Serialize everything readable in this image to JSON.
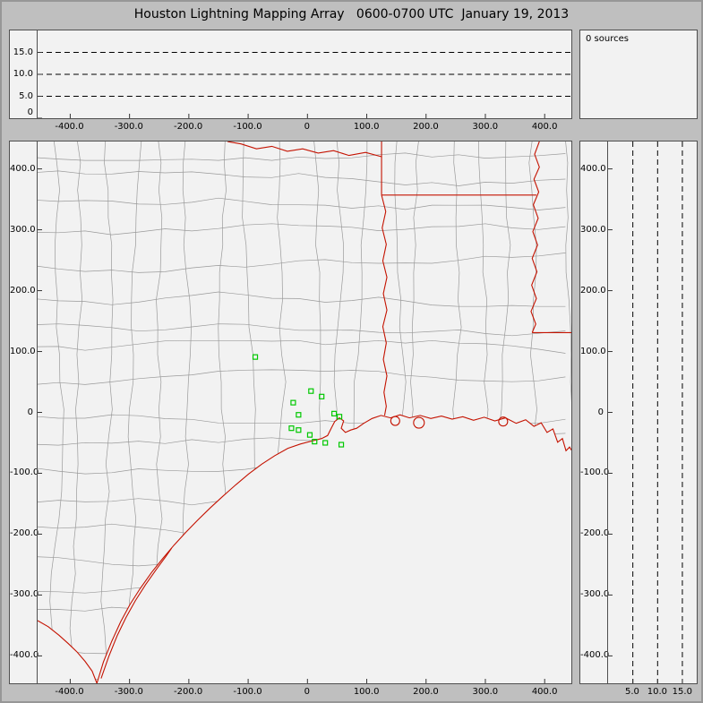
{
  "header": {
    "title": "Houston Lightning Mapping Array   0600-0700 UTC  January 19, 2013"
  },
  "chart_data": {
    "type": "scatter",
    "title": "Houston Lightning Mapping Array",
    "time_range": "0600-0700 UTC",
    "date": "January 19, 2013",
    "source_count_label": "0 sources",
    "lightning_sources": [],
    "stations_km": [
      [
        -88,
        91
      ],
      [
        6,
        35
      ],
      [
        24,
        26
      ],
      [
        -24,
        16
      ],
      [
        -15,
        -4
      ],
      [
        -27,
        -26
      ],
      [
        -15,
        -29
      ],
      [
        4,
        -37
      ],
      [
        45,
        -2
      ],
      [
        54,
        -7
      ],
      [
        12,
        -48
      ],
      [
        30,
        -50
      ],
      [
        57,
        -53
      ]
    ],
    "colors": {
      "boundary_red": "#c41200",
      "county_gray": "#9a9a9a",
      "station_green": "#00c800",
      "gridline_black": "#000000",
      "panel_bg": "#f2f2f2",
      "window_bg": "#bfbfbf"
    },
    "panels": {
      "alt_ew": {
        "desc": "altitude vs east-west distance, dashed levels in km",
        "xlim": [
          -455,
          445
        ],
        "ylim": [
          0,
          20
        ],
        "dash_levels": [
          5,
          10,
          15
        ],
        "x_ticks": [
          {
            "v": -400,
            "label": "-400.0"
          },
          {
            "v": -300,
            "label": "-300.0"
          },
          {
            "v": -200,
            "label": "-200.0"
          },
          {
            "v": -100,
            "label": "-100.0"
          },
          {
            "v": 0,
            "label": "0"
          },
          {
            "v": 100,
            "label": "100.0"
          },
          {
            "v": 200,
            "label": "200.0"
          },
          {
            "v": 300,
            "label": "300.0"
          },
          {
            "v": 400,
            "label": "400.0"
          }
        ],
        "y_ticks": [
          {
            "v": 15,
            "label": "15.0"
          },
          {
            "v": 10,
            "label": "10.0"
          },
          {
            "v": 5,
            "label": "5.0"
          },
          {
            "v": 0,
            "label": "0"
          }
        ]
      },
      "histogram": {
        "label": "0 sources"
      },
      "plan_map": {
        "desc": "plan view map, km east-west vs km north-south",
        "xlim": [
          -455,
          445
        ],
        "ylim": [
          -445,
          445
        ],
        "x_ticks": [
          {
            "v": -400,
            "label": "-400.0"
          },
          {
            "v": -300,
            "label": "-300.0"
          },
          {
            "v": -200,
            "label": "-200.0"
          },
          {
            "v": -100,
            "label": "-100.0"
          },
          {
            "v": 0,
            "label": "0"
          },
          {
            "v": 100,
            "label": "100.0"
          },
          {
            "v": 200,
            "label": "200.0"
          },
          {
            "v": 300,
            "label": "300.0"
          },
          {
            "v": 400,
            "label": "400.0"
          }
        ],
        "y_ticks": [
          {
            "v": 400,
            "label": "400.0"
          },
          {
            "v": 300,
            "label": "300.0"
          },
          {
            "v": 200,
            "label": "200.0"
          },
          {
            "v": 100,
            "label": "100.0"
          },
          {
            "v": 0,
            "label": "0"
          },
          {
            "v": -100,
            "label": "-100.0"
          },
          {
            "v": -200,
            "label": "-200.0"
          },
          {
            "v": -300,
            "label": "-300.0"
          },
          {
            "v": -400,
            "label": "-400.0"
          }
        ]
      },
      "alt_ns": {
        "desc": "altitude vs north-south distance, dashed levels in km",
        "xlim": [
          0,
          17.9
        ],
        "ylim": [
          -445,
          445
        ],
        "dash_levels": [
          5,
          10,
          15
        ],
        "x_ticks": [
          {
            "v": 5,
            "label": "5.0"
          },
          {
            "v": 10,
            "label": "10.0"
          },
          {
            "v": 15,
            "label": "15.0"
          }
        ],
        "y_ticks": [
          {
            "v": 400,
            "label": "400.0"
          },
          {
            "v": 300,
            "label": "300.0"
          },
          {
            "v": 200,
            "label": "200.0"
          },
          {
            "v": 100,
            "label": "100.0"
          },
          {
            "v": 0,
            "label": "0"
          },
          {
            "v": -100,
            "label": "-100.0"
          },
          {
            "v": -200,
            "label": "-200.0"
          },
          {
            "v": -300,
            "label": "-300.0"
          },
          {
            "v": -400,
            "label": "-400.0"
          }
        ]
      }
    }
  }
}
